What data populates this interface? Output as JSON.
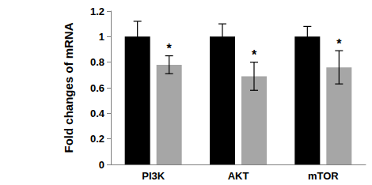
{
  "chart_data": {
    "type": "bar",
    "y_label": "Fold changes of mRNA",
    "categories": [
      "PI3K",
      "AKT",
      "mTOR"
    ],
    "series": [
      {
        "color": "#000000",
        "values": [
          1,
          1,
          1
        ],
        "errors": [
          0.12,
          0.1,
          0.08
        ]
      },
      {
        "color": "#a6a6a6",
        "values": [
          0.78,
          0.69,
          0.76
        ],
        "errors": [
          0.07,
          0.11,
          0.13
        ],
        "annotations": [
          "*",
          "*",
          "*"
        ]
      }
    ],
    "ylim": [
      0,
      1.2
    ],
    "yticks": [
      0,
      0.2,
      0.4,
      0.6,
      0.8,
      1,
      1.2
    ],
    "grid": false
  }
}
